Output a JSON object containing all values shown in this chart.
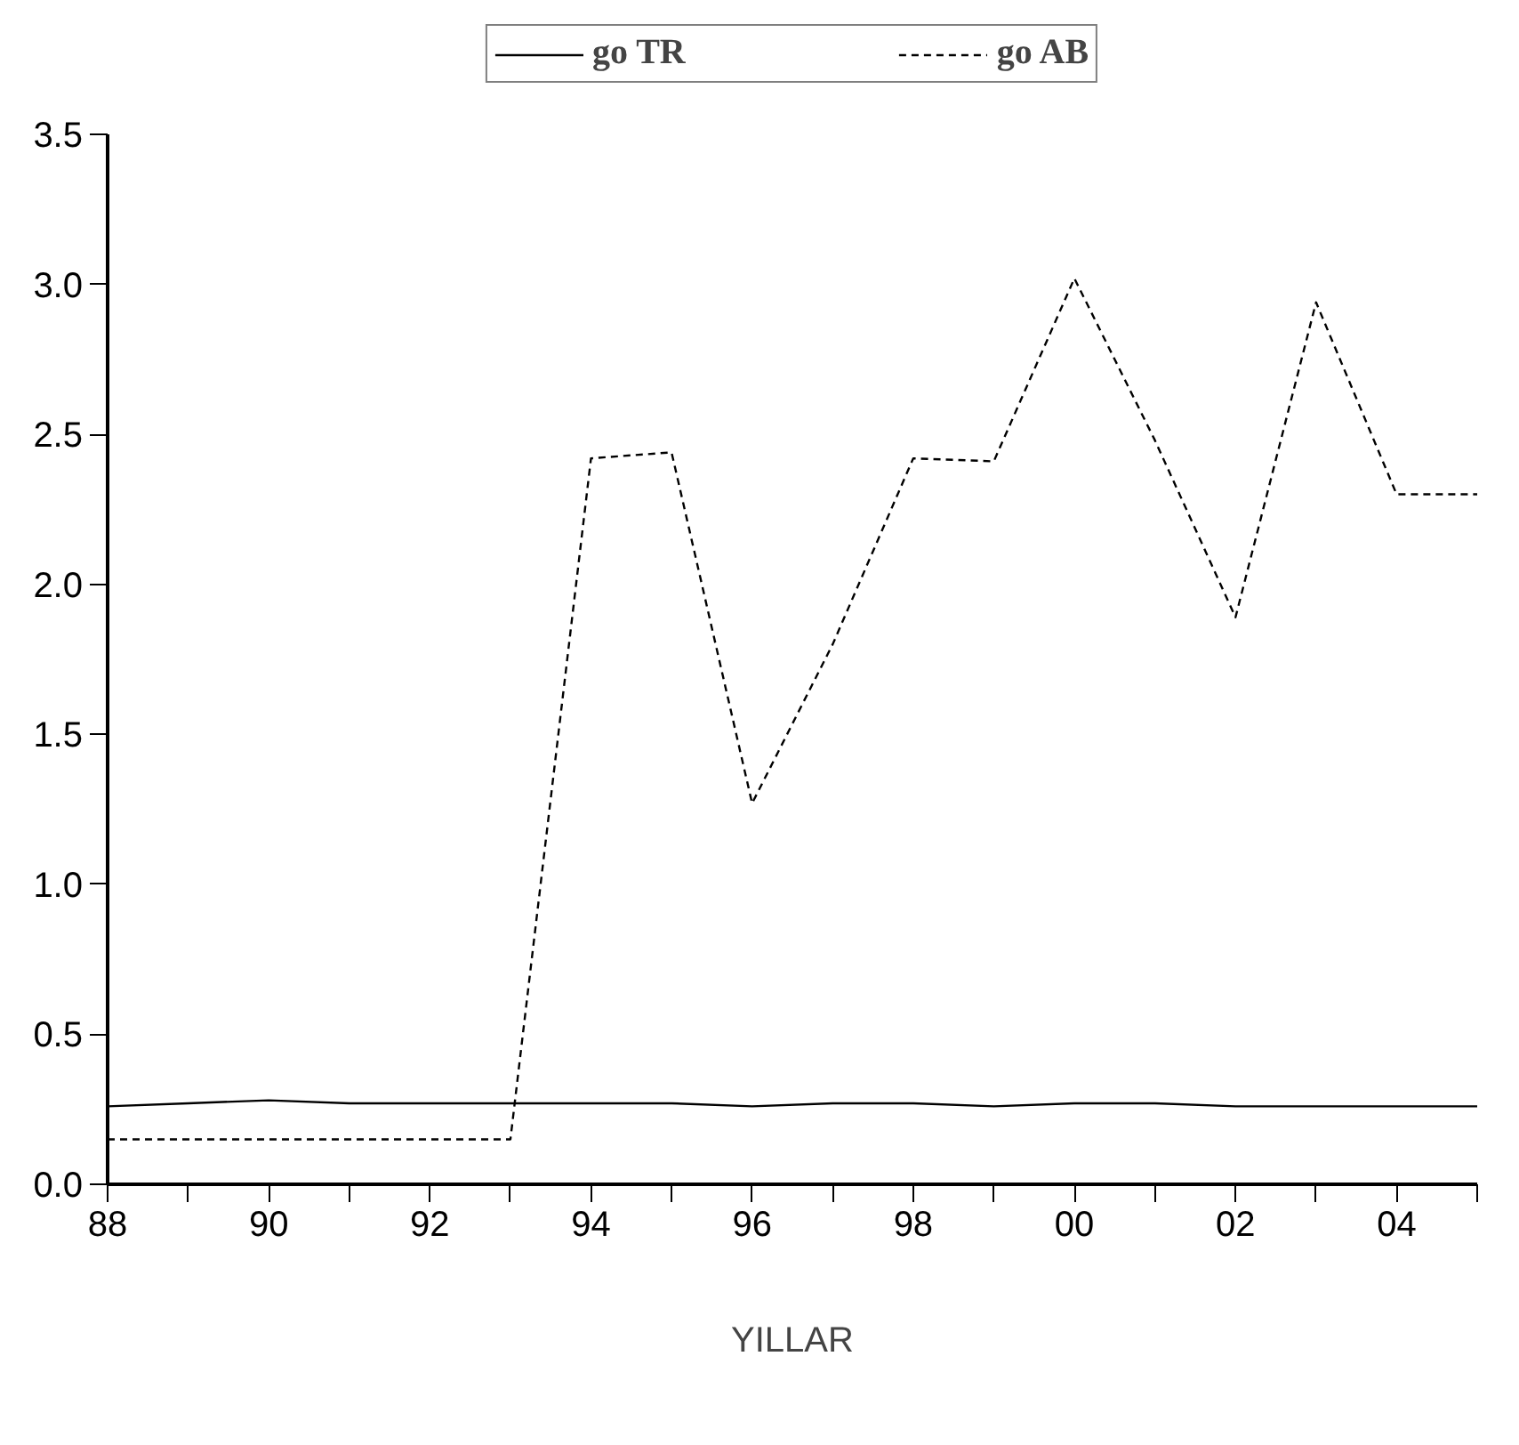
{
  "chart_data": {
    "type": "line",
    "xlabel": "YILLAR",
    "x": [
      1988,
      1989,
      1990,
      1991,
      1992,
      1993,
      1994,
      1995,
      1996,
      1997,
      1998,
      1999,
      2000,
      2001,
      2002,
      2003,
      2004,
      2005
    ],
    "series": [
      {
        "name": "go TR",
        "color": "#000000",
        "line_style": "solid",
        "values": [
          0.26,
          0.27,
          0.28,
          0.27,
          0.27,
          0.27,
          0.27,
          0.27,
          0.26,
          0.27,
          0.27,
          0.26,
          0.27,
          0.27,
          0.26,
          0.26,
          0.26,
          0.26
        ]
      },
      {
        "name": "go AB",
        "color": "#000000",
        "line_style": "dashed",
        "values": [
          0.15,
          0.15,
          0.15,
          0.15,
          0.15,
          0.15,
          2.42,
          2.44,
          1.27,
          1.8,
          2.42,
          2.41,
          3.02,
          2.48,
          1.89,
          2.94,
          2.3,
          2.3
        ]
      }
    ],
    "xlim": [
      1988,
      2005
    ],
    "ylim": [
      0,
      3.5
    ],
    "xticks": [
      {
        "value": 1988,
        "label": "88"
      },
      {
        "value": 1989,
        "label": null
      },
      {
        "value": 1990,
        "label": "90"
      },
      {
        "value": 1991,
        "label": null
      },
      {
        "value": 1992,
        "label": "92"
      },
      {
        "value": 1993,
        "label": null
      },
      {
        "value": 1994,
        "label": "94"
      },
      {
        "value": 1995,
        "label": null
      },
      {
        "value": 1996,
        "label": "96"
      },
      {
        "value": 1997,
        "label": null
      },
      {
        "value": 1998,
        "label": "98"
      },
      {
        "value": 1999,
        "label": null
      },
      {
        "value": 2000,
        "label": "00"
      },
      {
        "value": 2001,
        "label": null
      },
      {
        "value": 2002,
        "label": "02"
      },
      {
        "value": 2003,
        "label": null
      },
      {
        "value": 2004,
        "label": "04"
      },
      {
        "value": 2005,
        "label": null
      }
    ],
    "yticks": [
      {
        "value": 0,
        "label": "0.0"
      },
      {
        "value": 0.5,
        "label": "0.5"
      },
      {
        "value": 1,
        "label": "1.0"
      },
      {
        "value": 1.5,
        "label": "1.5"
      },
      {
        "value": 2,
        "label": "2.0"
      },
      {
        "value": 2.5,
        "label": "2.5"
      },
      {
        "value": 3,
        "label": "3.0"
      },
      {
        "value": 3.5,
        "label": "3.5"
      }
    ],
    "grid": false,
    "legend": "top",
    "marker": "none"
  }
}
